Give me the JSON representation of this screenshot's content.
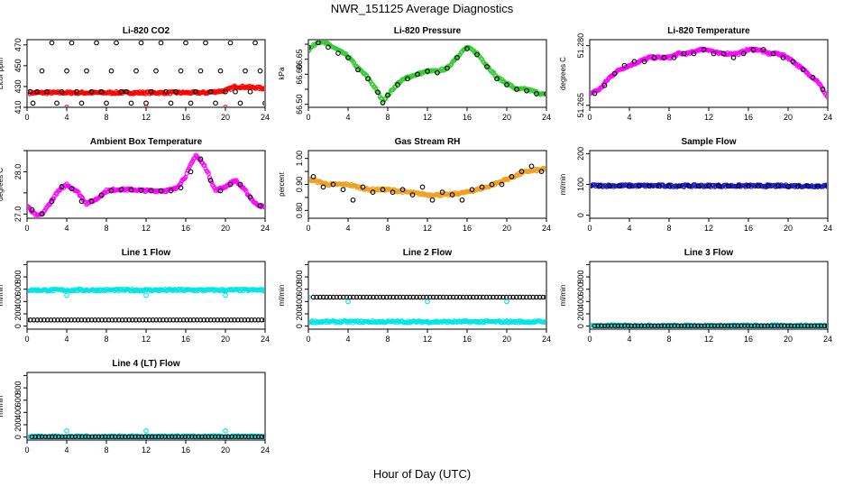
{
  "title": "NWR_151125  Average Diagnostics",
  "xlabel": "Hour of Day (UTC)",
  "chart_data": [
    {
      "type": "scatter",
      "title": "Li-820 CO2",
      "ylabel": "Licor ppm",
      "xlim": [
        0,
        24
      ],
      "xticks": [
        0,
        4,
        8,
        12,
        16,
        20,
        24
      ],
      "ylim": [
        410,
        475
      ],
      "yticks": [
        410,
        430,
        450,
        470
      ],
      "ytick_labels": [
        "410",
        "430",
        "450",
        "470"
      ],
      "series": [
        {
          "color": "#ff0000",
          "marker": "o",
          "mode": "band",
          "x": [
            0.3,
            16.5,
            18,
            20,
            21,
            23,
            24
          ],
          "y": [
            424,
            424,
            424,
            426,
            430,
            429,
            428
          ]
        },
        {
          "color": "#000000",
          "marker": "o",
          "x": [
            0.3,
            0.6,
            1,
            1.5,
            2,
            2.5,
            3,
            3.5,
            4,
            4.5,
            5,
            5.5,
            6,
            6.5,
            7,
            7.5,
            8,
            8.5,
            9,
            9.5,
            10,
            10.5,
            11,
            11.5,
            12,
            12.5,
            13,
            13.5,
            14,
            14.5,
            15,
            15.5,
            16,
            16.5,
            17,
            17.5,
            18,
            18.5,
            19,
            19.5,
            20,
            20.5,
            21,
            21.5,
            22,
            22.5,
            23,
            23.5,
            24
          ],
          "y": [
            425,
            414,
            425,
            445,
            425,
            472,
            414,
            425,
            445,
            472,
            425,
            414,
            445,
            425,
            472,
            425,
            414,
            445,
            472,
            425,
            425,
            414,
            445,
            472,
            414,
            425,
            445,
            472,
            425,
            414,
            425,
            445,
            472,
            414,
            425,
            445,
            472,
            425,
            414,
            445,
            425,
            472,
            425,
            414,
            445,
            425,
            472,
            445,
            414
          ]
        },
        {
          "color": "#ff0000",
          "marker": "o",
          "x": [
            4,
            12,
            20
          ],
          "y": [
            410,
            410,
            410
          ]
        }
      ]
    },
    {
      "type": "scatter",
      "title": "Li-820 Pressure",
      "ylabel": "kPa",
      "xlim": [
        0,
        24
      ],
      "xticks": [
        0,
        4,
        8,
        12,
        16,
        20,
        24
      ],
      "ylim": [
        66.49,
        66.715
      ],
      "yticks": [
        66.5,
        66.55,
        66.6,
        66.65,
        66.7
      ],
      "ytick_labels": [
        "66.50",
        "",
        "66.60",
        "66.65",
        ""
      ],
      "series": [
        {
          "color": "#33cc33",
          "marker": "o",
          "mode": "band",
          "x": [
            0,
            1,
            2,
            3,
            4,
            5,
            6,
            7,
            7.5,
            8,
            9,
            10,
            11,
            12,
            13,
            14,
            15,
            16,
            17,
            18,
            19,
            20,
            21,
            22,
            23,
            24
          ],
          "y": [
            66.68,
            66.71,
            66.7,
            66.68,
            66.66,
            66.62,
            66.59,
            66.54,
            66.51,
            66.53,
            66.57,
            66.59,
            66.6,
            66.61,
            66.61,
            66.62,
            66.66,
            66.69,
            66.67,
            66.63,
            66.59,
            66.57,
            66.55,
            66.55,
            66.54,
            66.53
          ]
        },
        {
          "color": "#000000",
          "marker": "o",
          "x": [
            0,
            1,
            2,
            3,
            4,
            5,
            6,
            7,
            7.5,
            8,
            9,
            10,
            11,
            12,
            13,
            14,
            15,
            16,
            17,
            18,
            19,
            20,
            21,
            22,
            23,
            24
          ],
          "y": [
            66.69,
            66.705,
            66.69,
            66.67,
            66.655,
            66.615,
            66.585,
            66.54,
            66.505,
            66.53,
            66.565,
            66.585,
            66.6,
            66.61,
            66.605,
            66.62,
            66.655,
            66.685,
            66.665,
            66.625,
            66.585,
            66.565,
            66.55,
            66.545,
            66.535,
            66.535
          ]
        }
      ]
    },
    {
      "type": "scatter",
      "title": "Li-820 Temperature",
      "ylabel": "degrees C",
      "xlim": [
        0,
        24
      ],
      "xticks": [
        0,
        4,
        8,
        12,
        16,
        20,
        24
      ],
      "ylim": [
        51.2645,
        51.2815
      ],
      "yticks": [
        51.265,
        51.28
      ],
      "ytick_labels": [
        "51.265",
        "51.280"
      ],
      "series": [
        {
          "color": "#ff00ff",
          "marker": "o",
          "mode": "band",
          "x": [
            0,
            1,
            2,
            3,
            4,
            5,
            6,
            7,
            8,
            9,
            10,
            11,
            12,
            13,
            14,
            15,
            16,
            17,
            18,
            19,
            20,
            21,
            22,
            23,
            24
          ],
          "y": [
            51.268,
            51.269,
            51.272,
            51.274,
            51.275,
            51.276,
            51.277,
            51.277,
            51.277,
            51.278,
            51.278,
            51.279,
            51.279,
            51.278,
            51.278,
            51.278,
            51.279,
            51.279,
            51.278,
            51.278,
            51.277,
            51.275,
            51.273,
            51.271,
            51.267
          ]
        },
        {
          "color": "#000000",
          "marker": "o",
          "x": [
            0.5,
            1.5,
            2.5,
            3.5,
            4.5,
            5.5,
            6.5,
            7.5,
            8.5,
            9.5,
            10.5,
            11.5,
            12.5,
            13.5,
            14.5,
            15.5,
            16.5,
            17.5,
            18.5,
            19.5,
            20.5,
            21.5,
            22.5,
            23.5
          ],
          "y": [
            51.268,
            51.27,
            51.273,
            51.275,
            51.276,
            51.276,
            51.277,
            51.277,
            51.277,
            51.278,
            51.278,
            51.279,
            51.278,
            51.278,
            51.277,
            51.278,
            51.279,
            51.279,
            51.278,
            51.277,
            51.276,
            51.274,
            51.272,
            51.269
          ]
        }
      ]
    },
    {
      "type": "scatter",
      "title": "Ambient Box Temperature",
      "ylabel": "degrees C",
      "xlim": [
        0,
        24
      ],
      "xticks": [
        0,
        4,
        8,
        12,
        16,
        20,
        24
      ],
      "ylim": [
        26.9,
        28.5
      ],
      "yticks": [
        27,
        27.5,
        28,
        28.5
      ],
      "ytick_labels": [
        "27.0",
        "",
        "28.0",
        ""
      ],
      "series": [
        {
          "color": "#ff00ff",
          "marker": "o",
          "mode": "band",
          "x": [
            0,
            0.5,
            1,
            1.5,
            2,
            3,
            4,
            5,
            6,
            7,
            8,
            9,
            10,
            11,
            12,
            13,
            14,
            15,
            16,
            17,
            18,
            19,
            20,
            21,
            22,
            23,
            24
          ],
          "y": [
            27.2,
            27.05,
            26.95,
            27.0,
            27.15,
            27.5,
            27.7,
            27.55,
            27.25,
            27.35,
            27.55,
            27.58,
            27.58,
            27.57,
            27.55,
            27.55,
            27.55,
            27.6,
            27.9,
            28.4,
            28.1,
            27.55,
            27.65,
            27.8,
            27.55,
            27.25,
            27.15
          ]
        },
        {
          "color": "#000000",
          "marker": "o",
          "x": [
            0.5,
            1.5,
            2.5,
            3.5,
            4.5,
            5.5,
            6.5,
            7.5,
            8.5,
            9.5,
            10.5,
            11.5,
            12.5,
            13.5,
            14.5,
            15.5,
            16.5,
            17.5,
            18.5,
            19.5,
            20.5,
            21.5,
            22.5,
            23.5
          ],
          "y": [
            27.1,
            27.0,
            27.3,
            27.65,
            27.6,
            27.3,
            27.3,
            27.45,
            27.55,
            27.58,
            27.57,
            27.56,
            27.55,
            27.55,
            27.55,
            27.62,
            28.0,
            28.3,
            27.8,
            27.55,
            27.7,
            27.7,
            27.4,
            27.2
          ]
        }
      ]
    },
    {
      "type": "scatter",
      "title": "Gas Stream RH",
      "ylabel": "percent",
      "xlim": [
        0,
        24
      ],
      "xticks": [
        0,
        4,
        8,
        12,
        16,
        20,
        24
      ],
      "ylim": [
        0.77,
        1.03
      ],
      "yticks": [
        0.8,
        0.85,
        0.9,
        0.95,
        1.0
      ],
      "ytick_labels": [
        "0.80",
        "",
        "0.90",
        "",
        "1.00"
      ],
      "series": [
        {
          "color": "#f0a020",
          "marker": "o",
          "mode": "band",
          "x": [
            0,
            2,
            4,
            6,
            8,
            10,
            12,
            14,
            16,
            18,
            20,
            22,
            24
          ],
          "y": [
            0.92,
            0.9,
            0.9,
            0.88,
            0.88,
            0.87,
            0.86,
            0.86,
            0.87,
            0.89,
            0.92,
            0.95,
            0.96
          ]
        },
        {
          "color": "#000000",
          "marker": "o",
          "x": [
            0.5,
            1.5,
            2.5,
            3.5,
            4.5,
            5.5,
            6.5,
            7.5,
            8.5,
            9.5,
            10.5,
            11.5,
            12.5,
            13.5,
            14.5,
            15.5,
            16.5,
            17.5,
            18.5,
            19.5,
            20.5,
            21.5,
            22.5,
            23.5
          ],
          "y": [
            0.93,
            0.89,
            0.9,
            0.88,
            0.84,
            0.89,
            0.87,
            0.88,
            0.87,
            0.88,
            0.86,
            0.89,
            0.84,
            0.87,
            0.86,
            0.84,
            0.88,
            0.89,
            0.9,
            0.9,
            0.93,
            0.95,
            0.97,
            0.95
          ]
        }
      ]
    },
    {
      "type": "scatter",
      "title": "Sample Flow",
      "ylabel": "ml/min",
      "xlim": [
        0,
        24
      ],
      "xticks": [
        0,
        4,
        8,
        12,
        16,
        20,
        24
      ],
      "ylim": [
        -10,
        210
      ],
      "yticks": [
        0,
        100,
        200
      ],
      "ytick_labels": [
        "0",
        "100",
        "200"
      ],
      "series": [
        {
          "color": "#1a1acc",
          "marker": "o",
          "mode": "band",
          "x": [
            0,
            24
          ],
          "y": [
            96,
            95
          ]
        },
        {
          "color": "#000000",
          "marker": "o",
          "x": [
            0,
            1,
            2,
            3,
            4,
            5,
            6,
            7,
            8,
            9,
            10,
            11,
            12,
            13,
            14,
            15,
            16,
            17,
            18,
            19,
            20,
            21,
            22,
            23,
            24
          ],
          "y": [
            95,
            95,
            95,
            95,
            95,
            95,
            95,
            95,
            95,
            95,
            95,
            95,
            95,
            95,
            95,
            95,
            95,
            95,
            95,
            95,
            94,
            94,
            94,
            93,
            93
          ]
        }
      ]
    },
    {
      "type": "scatter",
      "title": "Line 1 Flow",
      "ylabel": "ml/min",
      "xlim": [
        0,
        24
      ],
      "xticks": [
        0,
        4,
        8,
        12,
        16,
        20,
        24
      ],
      "ylim": [
        -50,
        1050
      ],
      "yticks": [
        0,
        200,
        400,
        600,
        800,
        1000
      ],
      "ytick_labels": [
        "0",
        "200",
        "400",
        "600",
        "800",
        ""
      ],
      "series": [
        {
          "color": "#00e5e5",
          "marker": "o",
          "mode": "band",
          "x": [
            0,
            24
          ],
          "y": [
            585,
            585
          ]
        },
        {
          "color": "#000000",
          "marker": "o",
          "x": [
            0,
            24
          ],
          "y": [
            100,
            100
          ],
          "mode": "dense"
        },
        {
          "color": "#00e5e5",
          "marker": "o",
          "x": [
            4,
            12,
            20
          ],
          "y": [
            500,
            500,
            500
          ]
        }
      ]
    },
    {
      "type": "scatter",
      "title": "Line 2 Flow",
      "ylabel": "ml/min",
      "xlim": [
        0,
        24
      ],
      "xticks": [
        0,
        4,
        8,
        12,
        16,
        20,
        24
      ],
      "ylim": [
        -50,
        1050
      ],
      "yticks": [
        0,
        200,
        400,
        600,
        800,
        1000
      ],
      "ytick_labels": [
        "0",
        "200",
        "400",
        "600",
        "800",
        ""
      ],
      "series": [
        {
          "color": "#00e5e5",
          "marker": "o",
          "mode": "band",
          "x": [
            0,
            24
          ],
          "y": [
            70,
            70
          ]
        },
        {
          "color": "#000000",
          "marker": "o",
          "x": [
            0.5,
            24
          ],
          "y": [
            470,
            470
          ],
          "mode": "dense"
        },
        {
          "color": "#00e5e5",
          "marker": "o",
          "x": [
            0,
            4,
            12,
            20
          ],
          "y": [
            470,
            400,
            400,
            400
          ]
        }
      ]
    },
    {
      "type": "scatter",
      "title": "Line 3 Flow",
      "ylabel": "ml/min",
      "xlim": [
        0,
        24
      ],
      "xticks": [
        0,
        4,
        8,
        12,
        16,
        20,
        24
      ],
      "ylim": [
        -50,
        1050
      ],
      "yticks": [
        0,
        200,
        400,
        600,
        800,
        1000
      ],
      "ytick_labels": [
        "0",
        "200",
        "400",
        "600",
        "800",
        ""
      ],
      "series": [
        {
          "color": "#00e5e5",
          "marker": "o",
          "mode": "band",
          "x": [
            0,
            24
          ],
          "y": [
            5,
            5
          ]
        },
        {
          "color": "#000000",
          "marker": "o",
          "x": [
            0.5,
            24
          ],
          "y": [
            5,
            5
          ],
          "mode": "dense"
        }
      ]
    },
    {
      "type": "scatter",
      "title": "Line 4 (LT) Flow",
      "ylabel": "ml/min",
      "xlim": [
        0,
        24
      ],
      "xticks": [
        0,
        4,
        8,
        12,
        16,
        20,
        24
      ],
      "ylim": [
        -50,
        1050
      ],
      "yticks": [
        0,
        200,
        400,
        600,
        800,
        1000
      ],
      "ytick_labels": [
        "0",
        "200",
        "400",
        "600",
        "800",
        ""
      ],
      "series": [
        {
          "color": "#00e5e5",
          "marker": "o",
          "mode": "band",
          "x": [
            0,
            24
          ],
          "y": [
            5,
            5
          ]
        },
        {
          "color": "#000000",
          "marker": "o",
          "x": [
            0.5,
            24
          ],
          "y": [
            5,
            5
          ],
          "mode": "dense"
        },
        {
          "color": "#00e5e5",
          "marker": "o",
          "x": [
            4,
            12,
            20
          ],
          "y": [
            100,
            100,
            100
          ]
        }
      ]
    }
  ]
}
